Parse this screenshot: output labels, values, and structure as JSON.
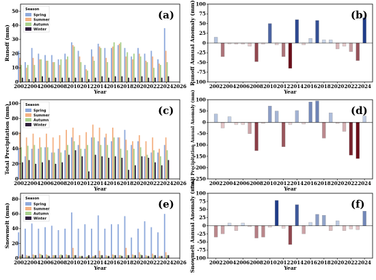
{
  "years": [
    2002,
    2003,
    2004,
    2005,
    2006,
    2007,
    2008,
    2009,
    2010,
    2011,
    2012,
    2013,
    2014,
    2015,
    2016,
    2017,
    2018,
    2019,
    2020,
    2021,
    2022,
    2023,
    2024
  ],
  "colors": {
    "Spring": "#8faadc",
    "Summer": "#f4b183",
    "Autumn": "#a9d18e",
    "Winter": "#2f1e3b",
    "pos_dark": "#1f3c88",
    "neg_dark": "#6b0f1a",
    "pos_light": "#e1ebf7",
    "neg_light": "#f8e6e6"
  },
  "chart_data": [
    {
      "panel": "(a)",
      "type": "bar",
      "xlabel": "Year",
      "ylabel": "Runoff (mm)",
      "xlim": [
        2002,
        2026
      ],
      "xticks": [
        2002,
        2004,
        2006,
        2008,
        2010,
        2012,
        2014,
        2016,
        2018,
        2020,
        2022,
        2024,
        2026
      ],
      "ylim": [
        0,
        55
      ],
      "yticks": [
        0,
        10,
        20,
        30,
        40,
        50
      ],
      "legend": {
        "title": "Season",
        "position": "top-left",
        "entries": [
          "Spring",
          "Summer",
          "Autumn",
          "Winter"
        ]
      },
      "series": [
        {
          "name": "Spring",
          "values": [
            22,
            14,
            24,
            20,
            19,
            19,
            16,
            20,
            28,
            22,
            12,
            23,
            27,
            24,
            24,
            26,
            24,
            18,
            24,
            20,
            22,
            16,
            38
          ]
        },
        {
          "name": "Summer",
          "values": [
            17,
            10,
            17,
            16,
            15,
            14,
            12,
            16,
            26,
            18,
            9,
            18,
            25,
            17,
            25,
            27,
            18,
            16,
            20,
            15,
            18,
            13,
            22
          ]
        },
        {
          "name": "Autumn",
          "values": [
            12,
            12,
            12,
            16,
            15,
            14,
            16,
            18,
            25,
            14,
            8,
            15,
            24,
            14,
            28,
            28,
            21,
            20,
            18,
            14,
            10,
            12,
            14
          ]
        },
        {
          "name": "Winter",
          "values": [
            3,
            2,
            3,
            4,
            3,
            3,
            3,
            3,
            3,
            3,
            2,
            3,
            4,
            3,
            4,
            4,
            3,
            3,
            4,
            3,
            3,
            3,
            4
          ]
        }
      ]
    },
    {
      "panel": "(b)",
      "type": "bar",
      "xlabel": "Year",
      "ylabel": "Runoff Annual Anomaly (mm)",
      "ylim": [
        -100,
        100
      ],
      "yticks": [
        -100,
        -75,
        -50,
        -25,
        0,
        25,
        50,
        75,
        100
      ],
      "xticks": [
        2002,
        2004,
        2006,
        2008,
        2010,
        2012,
        2014,
        2016,
        2018,
        2020,
        2022,
        2024
      ],
      "values": [
        15,
        -35,
        -2,
        -3,
        -3,
        -8,
        -48,
        -3,
        50,
        -5,
        -35,
        -65,
        60,
        -5,
        12,
        58,
        8,
        8,
        -15,
        -8,
        -22,
        -45,
        65
      ]
    },
    {
      "panel": "(c)",
      "type": "bar",
      "xlabel": "Year",
      "ylabel": "Total Precipitation (mm)",
      "xlim": [
        2002,
        2026
      ],
      "xticks": [
        2002,
        2004,
        2006,
        2008,
        2010,
        2012,
        2014,
        2016,
        2018,
        2020,
        2022,
        2024,
        2026
      ],
      "ylim": [
        0,
        105
      ],
      "yticks": [
        0,
        20,
        40,
        60,
        80,
        100
      ],
      "legend": {
        "title": "Season",
        "position": "top-left",
        "entries": [
          "Spring",
          "Summer",
          "Autumn",
          "Winter"
        ]
      },
      "series": [
        {
          "name": "Spring",
          "values": [
            40,
            30,
            40,
            40,
            42,
            35,
            40,
            38,
            55,
            45,
            40,
            55,
            50,
            55,
            50,
            55,
            65,
            45,
            50,
            30,
            35,
            35,
            45
          ]
        },
        {
          "name": "Summer",
          "values": [
            62,
            55,
            60,
            55,
            60,
            55,
            58,
            65,
            68,
            58,
            62,
            72,
            68,
            60,
            68,
            55,
            52,
            50,
            58,
            50,
            55,
            40,
            55
          ]
        },
        {
          "name": "Autumn",
          "values": [
            42,
            44,
            45,
            42,
            42,
            35,
            35,
            45,
            50,
            40,
            45,
            55,
            45,
            45,
            55,
            40,
            38,
            40,
            42,
            32,
            38,
            30,
            38
          ]
        },
        {
          "name": "Winter",
          "values": [
            22,
            25,
            20,
            22,
            25,
            20,
            22,
            32,
            38,
            30,
            10,
            32,
            30,
            28,
            30,
            28,
            12,
            18,
            30,
            28,
            22,
            18,
            25
          ]
        }
      ]
    },
    {
      "panel": "(d)",
      "type": "bar",
      "xlabel": "Year",
      "ylabel": "Total Precipitation Annual Anomaly (mm)",
      "ylim": [
        -250,
        100
      ],
      "yticks": [
        -250,
        -200,
        -150,
        -100,
        -50,
        0,
        50,
        100
      ],
      "xticks": [
        2002,
        2004,
        2006,
        2008,
        2010,
        2012,
        2014,
        2016,
        2018,
        2020,
        2022,
        2024
      ],
      "values": [
        37,
        -25,
        25,
        -10,
        -10,
        -50,
        -125,
        -5,
        72,
        50,
        -108,
        -10,
        52,
        -8,
        90,
        95,
        -70,
        42,
        -5,
        -40,
        -145,
        -160,
        28
      ]
    },
    {
      "panel": "(e)",
      "type": "bar",
      "xlabel": "Year",
      "ylabel": "Snowmelt (mm)",
      "xlim": [
        2002,
        2026
      ],
      "xticks": [
        2002,
        2004,
        2006,
        2008,
        2010,
        2012,
        2014,
        2016,
        2018,
        2020,
        2022,
        2024,
        2026
      ],
      "ylim": [
        0,
        88
      ],
      "yticks": [
        0,
        20,
        40,
        60,
        80
      ],
      "legend": {
        "title": "Season",
        "position": "top-left",
        "entries": [
          "Spring",
          "Summer",
          "Autumn",
          "Winter"
        ]
      },
      "series": [
        {
          "name": "Spring",
          "values": [
            35,
            40,
            47,
            40,
            42,
            44,
            38,
            40,
            62,
            40,
            46,
            40,
            58,
            40,
            46,
            46,
            57,
            28,
            40,
            50,
            42,
            35,
            60
          ]
        },
        {
          "name": "Summer",
          "values": [
            3,
            4,
            5,
            6,
            5,
            4,
            4,
            5,
            14,
            3,
            2,
            3,
            10,
            4,
            5,
            4,
            14,
            5,
            8,
            4,
            6,
            3,
            8
          ]
        },
        {
          "name": "Autumn",
          "values": [
            3,
            3,
            4,
            5,
            4,
            4,
            5,
            4,
            4,
            3,
            3,
            3,
            4,
            3,
            4,
            4,
            4,
            4,
            5,
            3,
            4,
            3,
            4
          ]
        },
        {
          "name": "Winter",
          "values": [
            5,
            3,
            4,
            4,
            3,
            4,
            4,
            4,
            4,
            3,
            4,
            4,
            4,
            3,
            4,
            3,
            4,
            4,
            4,
            3,
            4,
            3,
            4
          ]
        }
      ]
    },
    {
      "panel": "(f)",
      "type": "bar",
      "xlabel": "Year",
      "ylabel": "Snowmelt Annual Anomaly (mm)",
      "ylim": [
        -100,
        100
      ],
      "yticks": [
        -100,
        -75,
        -50,
        -25,
        0,
        25,
        50,
        75,
        100
      ],
      "xticks": [
        2002,
        2004,
        2006,
        2008,
        2010,
        2012,
        2014,
        2016,
        2018,
        2020,
        2022,
        2024
      ],
      "values": [
        -35,
        -25,
        8,
        -15,
        8,
        -3,
        -38,
        -35,
        -5,
        78,
        -8,
        -58,
        65,
        -25,
        10,
        35,
        32,
        -15,
        15,
        -15,
        -10,
        -12,
        45
      ]
    }
  ]
}
